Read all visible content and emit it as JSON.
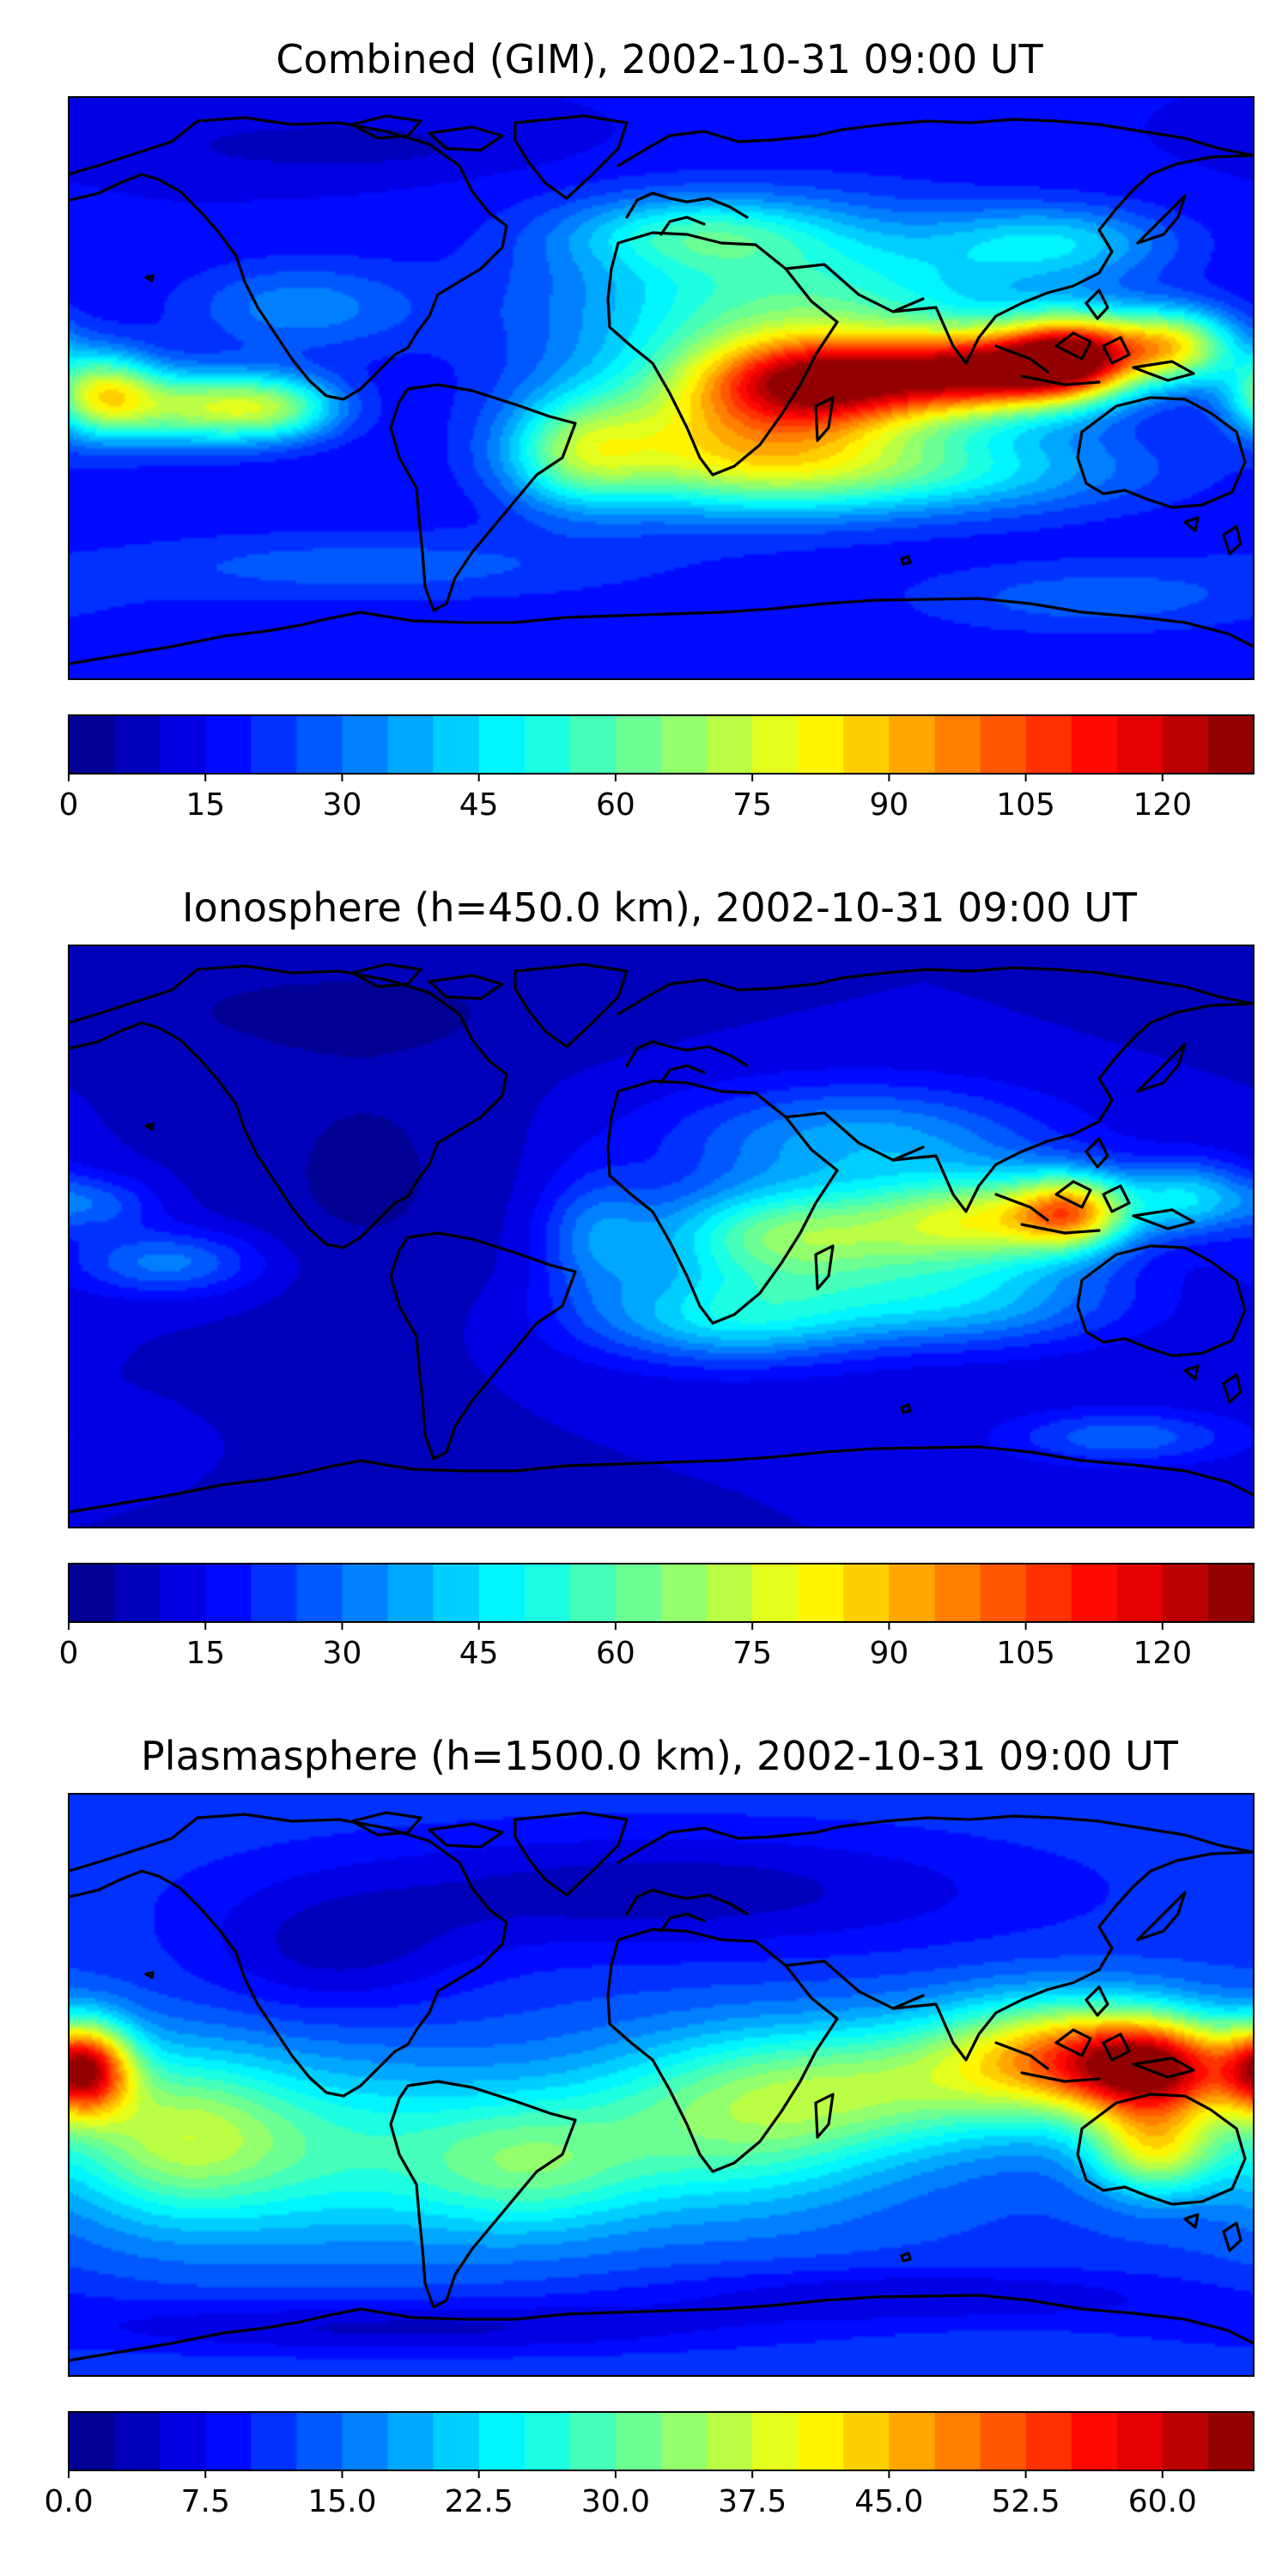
{
  "chart_data": [
    {
      "type": "heatmap",
      "title": "Combined (GIM), 2002-10-31 09:00 UT",
      "projection": "equirectangular, 180W to 180E, 90S to 90N",
      "coastlines": true,
      "colormap": "jet",
      "levels": [
        0,
        5,
        10,
        15,
        20,
        25,
        30,
        35,
        40,
        45,
        50,
        55,
        60,
        65,
        70,
        75,
        80,
        85,
        90,
        95,
        100,
        105,
        110,
        115,
        120,
        125,
        130
      ],
      "colorbar_ticks": [
        "0",
        "15",
        "30",
        "45",
        "60",
        "75",
        "90",
        "105",
        "120"
      ],
      "background_value": 15,
      "blobs": [
        {
          "lon": 50,
          "lat": 2,
          "value": 108,
          "sx": 26,
          "sy": 10
        },
        {
          "lon": 100,
          "lat": 5,
          "value": 116,
          "sx": 22,
          "sy": 9
        },
        {
          "lon": 125,
          "lat": 10,
          "value": 110,
          "sx": 14,
          "sy": 9
        },
        {
          "lon": 155,
          "lat": 13,
          "value": 88,
          "sx": 14,
          "sy": 8
        },
        {
          "lon": 40,
          "lat": 25,
          "value": 65,
          "sx": 50,
          "sy": 20
        },
        {
          "lon": 20,
          "lat": -15,
          "value": 72,
          "sx": 35,
          "sy": 15
        },
        {
          "lon": 70,
          "lat": -25,
          "value": 58,
          "sx": 50,
          "sy": 10
        },
        {
          "lon": -170,
          "lat": -2,
          "value": 84,
          "sx": 12,
          "sy": 9
        },
        {
          "lon": -140,
          "lat": -6,
          "value": 74,
          "sx": 18,
          "sy": 8
        },
        {
          "lon": -115,
          "lat": -6,
          "value": 55,
          "sx": 14,
          "sy": 7
        },
        {
          "lon": -25,
          "lat": -20,
          "value": 55,
          "sx": 16,
          "sy": 12
        },
        {
          "lon": 10,
          "lat": 48,
          "value": 46,
          "sx": 28,
          "sy": 8
        },
        {
          "lon": 120,
          "lat": 45,
          "value": 44,
          "sx": 25,
          "sy": 8
        },
        {
          "lon": -110,
          "lat": 25,
          "value": 36,
          "sx": 25,
          "sy": 10
        },
        {
          "lon": -90,
          "lat": -55,
          "value": 30,
          "sx": 60,
          "sy": 8
        },
        {
          "lon": 130,
          "lat": -65,
          "value": 30,
          "sx": 40,
          "sy": 8
        },
        {
          "lon": -100,
          "lat": 75,
          "value": 6,
          "sx": 40,
          "sy": 6
        }
      ]
    },
    {
      "type": "heatmap",
      "title": "Ionosphere  (h=450.0 km), 2002-10-31 09:00 UT",
      "projection": "equirectangular, 180W to 180E, 90S to 90N",
      "coastlines": true,
      "colormap": "jet",
      "levels": [
        0,
        5,
        10,
        15,
        20,
        25,
        30,
        35,
        40,
        45,
        50,
        55,
        60,
        65,
        70,
        75,
        80,
        85,
        90,
        95,
        100,
        105,
        110,
        115,
        120,
        125,
        130
      ],
      "colorbar_ticks": [
        "0",
        "15",
        "30",
        "45",
        "60",
        "75",
        "90",
        "105",
        "120"
      ],
      "background_value": 10,
      "blobs": [
        {
          "lon": 40,
          "lat": 0,
          "value": 72,
          "sx": 30,
          "sy": 11
        },
        {
          "lon": 100,
          "lat": 5,
          "value": 78,
          "sx": 25,
          "sy": 10
        },
        {
          "lon": 125,
          "lat": 8,
          "value": 76,
          "sx": 12,
          "sy": 8
        },
        {
          "lon": 60,
          "lat": 30,
          "value": 42,
          "sx": 40,
          "sy": 12
        },
        {
          "lon": 20,
          "lat": -25,
          "value": 50,
          "sx": 30,
          "sy": 10
        },
        {
          "lon": 90,
          "lat": -20,
          "value": 45,
          "sx": 35,
          "sy": 10
        },
        {
          "lon": 160,
          "lat": 12,
          "value": 48,
          "sx": 14,
          "sy": 8
        },
        {
          "lon": -150,
          "lat": -8,
          "value": 36,
          "sx": 20,
          "sy": 7
        },
        {
          "lon": -170,
          "lat": 10,
          "value": 28,
          "sx": 12,
          "sy": 6
        },
        {
          "lon": -20,
          "lat": 0,
          "value": 32,
          "sx": 12,
          "sy": 14
        },
        {
          "lon": 140,
          "lat": -62,
          "value": 32,
          "sx": 25,
          "sy": 6
        },
        {
          "lon": -90,
          "lat": 20,
          "value": 3,
          "sx": 30,
          "sy": 30
        },
        {
          "lon": -100,
          "lat": 70,
          "value": 3,
          "sx": 50,
          "sy": 10
        }
      ]
    },
    {
      "type": "heatmap",
      "title": "Plasmasphere (h=1500.0 km), 2002-10-31 09:00 UT",
      "projection": "equirectangular, 180W to 180E, 90S to 90N",
      "coastlines": true,
      "colormap": "jet",
      "levels": [
        0,
        2.5,
        5,
        7.5,
        10,
        12.5,
        15,
        17.5,
        20,
        22.5,
        25,
        27.5,
        30,
        32.5,
        35,
        37.5,
        40,
        42.5,
        45,
        47.5,
        50,
        52.5,
        55,
        57.5,
        60,
        62.5,
        65
      ],
      "colorbar_ticks": [
        "0.0",
        "7.5",
        "15.0",
        "22.5",
        "30.0",
        "37.5",
        "45.0",
        "52.5",
        "60.0"
      ],
      "background_value": 12,
      "blobs": [
        {
          "lon": 150,
          "lat": 5,
          "value": 60,
          "sx": 18,
          "sy": 11
        },
        {
          "lon": 120,
          "lat": 10,
          "value": 42,
          "sx": 25,
          "sy": 12
        },
        {
          "lon": 70,
          "lat": 0,
          "value": 33,
          "sx": 45,
          "sy": 14
        },
        {
          "lon": 20,
          "lat": -15,
          "value": 30,
          "sx": 35,
          "sy": 18
        },
        {
          "lon": -175,
          "lat": 5,
          "value": 58,
          "sx": 10,
          "sy": 10
        },
        {
          "lon": -150,
          "lat": -15,
          "value": 34,
          "sx": 25,
          "sy": 18
        },
        {
          "lon": -100,
          "lat": -20,
          "value": 28,
          "sx": 40,
          "sy": 20
        },
        {
          "lon": -40,
          "lat": -25,
          "value": 28,
          "sx": 25,
          "sy": 15
        },
        {
          "lon": 150,
          "lat": -20,
          "value": 40,
          "sx": 14,
          "sy": 10
        },
        {
          "lon": 0,
          "lat": 60,
          "value": 2,
          "sx": 80,
          "sy": 14
        },
        {
          "lon": -100,
          "lat": 40,
          "value": 4,
          "sx": 30,
          "sy": 14
        },
        {
          "lon": 80,
          "lat": -65,
          "value": 4,
          "sx": 60,
          "sy": 6
        },
        {
          "lon": -80,
          "lat": -75,
          "value": 3,
          "sx": 80,
          "sy": 6
        }
      ]
    }
  ]
}
